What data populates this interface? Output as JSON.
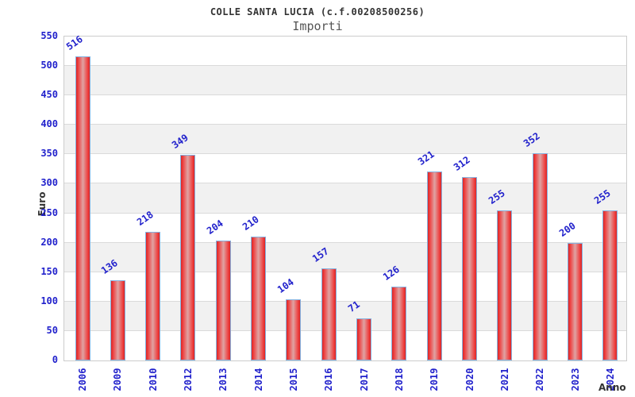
{
  "chart_data": {
    "type": "bar",
    "title": "COLLE SANTA LUCIA (c.f.00208500256)",
    "subtitle": "Importi",
    "xlabel": "Anno",
    "ylabel": "Euro",
    "categories": [
      "2006",
      "2009",
      "2010",
      "2012",
      "2013",
      "2014",
      "2015",
      "2016",
      "2017",
      "2018",
      "2019",
      "2020",
      "2021",
      "2022",
      "2023",
      "2024"
    ],
    "values": [
      516,
      136,
      218,
      349,
      204,
      210,
      104,
      157,
      71,
      126,
      321,
      312,
      255,
      352,
      200,
      255
    ],
    "ylim": [
      0,
      550
    ],
    "ytick_interval": 50,
    "grid": true,
    "legend": false,
    "bands_alternating": true
  },
  "colors": {
    "bar_red": "#d92626",
    "bar_red_bright": "#ee4040",
    "bar_center_light": "#dfa3a3",
    "bar_border": "#85b2e0",
    "value_label_blue": "#2222cc",
    "axis_label_blue": "#2222cc",
    "band_gray": "#f1f1f1",
    "grid_line": "#dadada",
    "plot_border": "#cccccc",
    "title_color": "#333333",
    "subtitle_color": "#555555",
    "axis_title_color": "#333333"
  }
}
